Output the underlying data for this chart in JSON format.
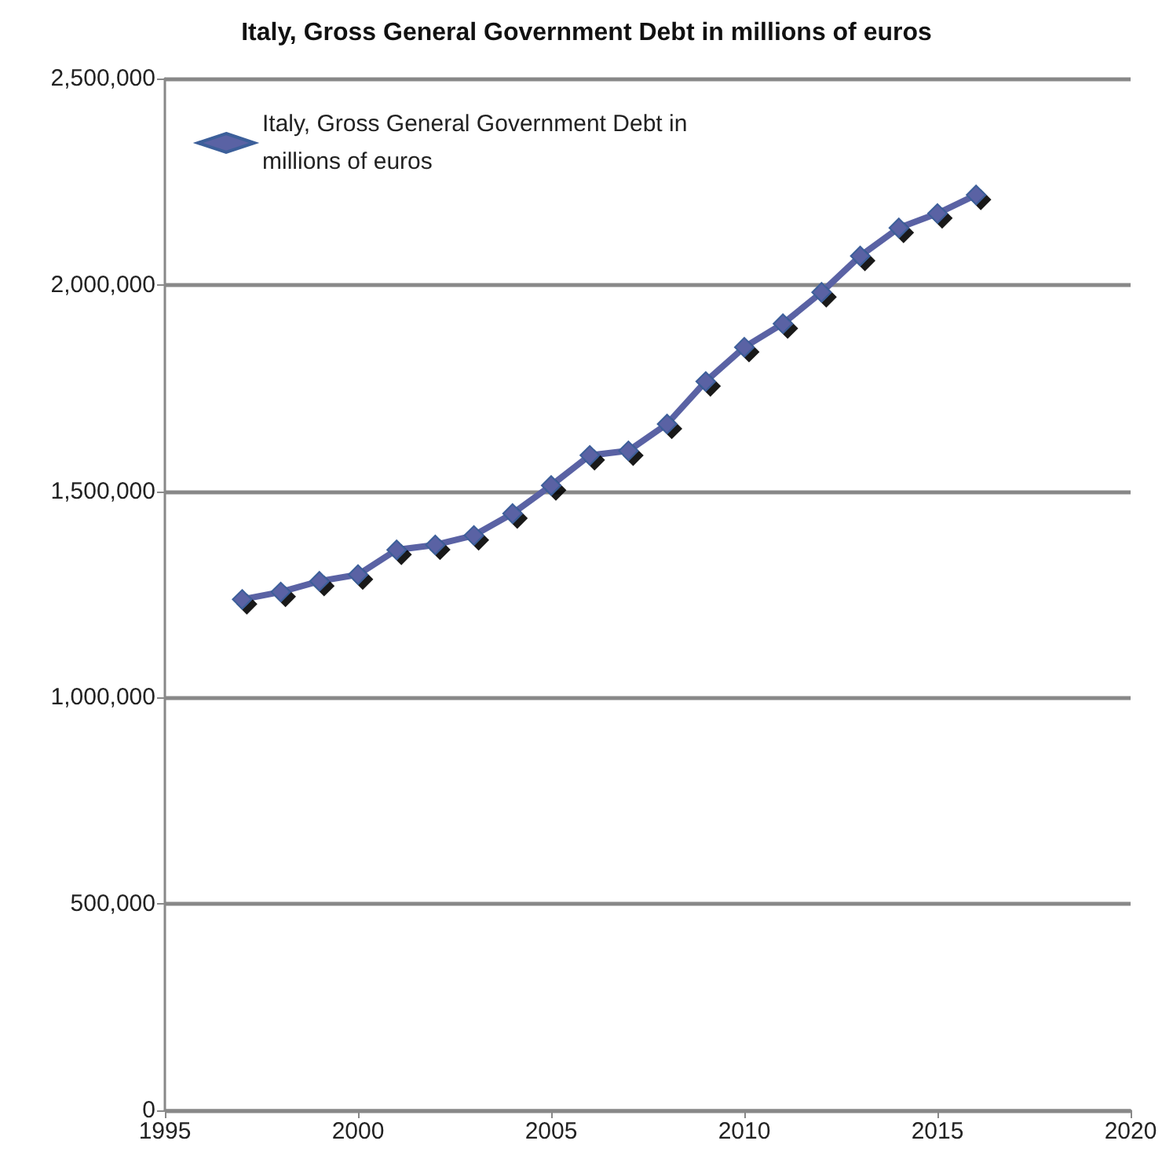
{
  "chart_data": {
    "type": "line",
    "title": "Italy, Gross General Government Debt in millions of euros",
    "x": [
      1997,
      1998,
      1999,
      2000,
      2001,
      2002,
      2003,
      2004,
      2005,
      2006,
      2007,
      2008,
      2009,
      2010,
      2011,
      2012,
      2013,
      2014,
      2015,
      2016
    ],
    "series": [
      {
        "name": "Italy, Gross General Government Debt in millions of euros",
        "color": "#5a62a4",
        "values": [
          1238000,
          1256000,
          1282000,
          1298000,
          1358000,
          1370000,
          1393000,
          1446000,
          1514000,
          1587000,
          1598000,
          1663000,
          1766000,
          1849000,
          1906000,
          1982000,
          2070000,
          2138000,
          2173000,
          2218000
        ]
      }
    ],
    "xlim": [
      1995,
      2020
    ],
    "xticks": [
      1995,
      2000,
      2005,
      2010,
      2015,
      2020
    ],
    "ylim": [
      0,
      2500000
    ],
    "yticks": [
      {
        "value": 0,
        "label": "0"
      },
      {
        "value": 500000,
        "label": "500,000"
      },
      {
        "value": 1000000,
        "label": "1,000,000"
      },
      {
        "value": 1500000,
        "label": "1,500,000"
      },
      {
        "value": 2000000,
        "label": "2,000,000"
      },
      {
        "value": 2500000,
        "label": "2,500,000"
      }
    ],
    "grid": "y",
    "legend": "top left",
    "marker": "diamond",
    "line_style": "solid"
  }
}
